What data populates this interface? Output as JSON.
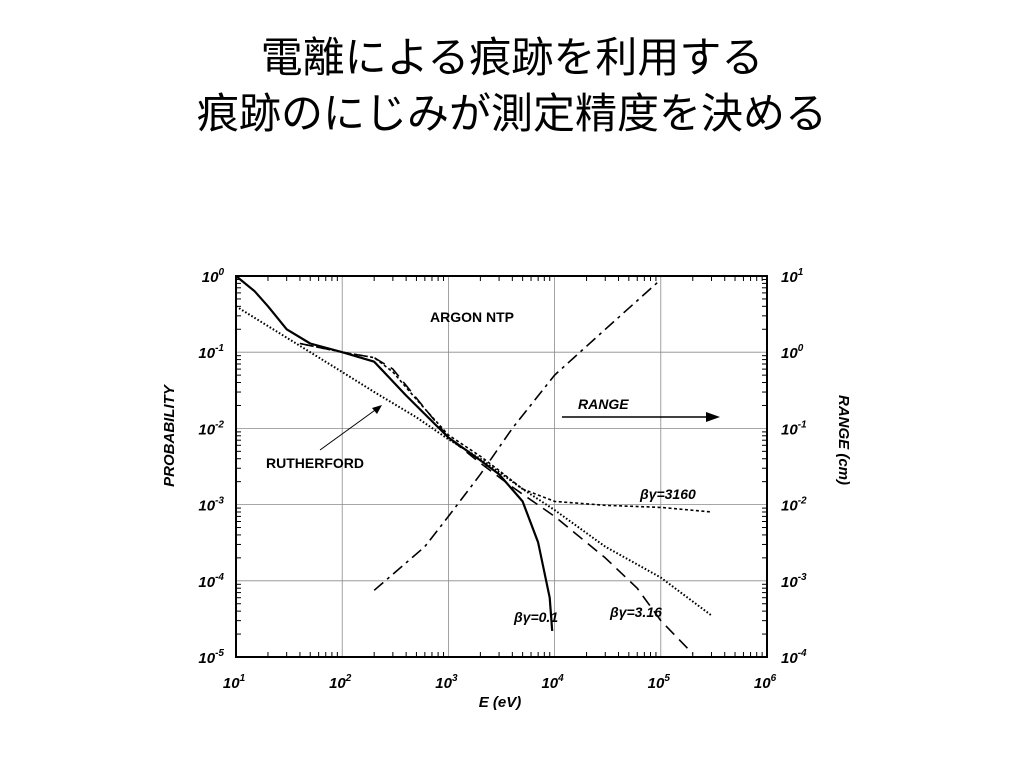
{
  "slide": {
    "title_line1": "電離による痕跡を利用する",
    "title_line2": "痕跡のにじみが測定精度を決める"
  },
  "chart_data": {
    "type": "line",
    "xlabel": "E (eV)",
    "ylabel": "PROBABILITY",
    "y2label": "RANGE (cm)",
    "xscale": "log",
    "yscale": "log",
    "xlim": [
      10,
      1000000
    ],
    "ylim": [
      1e-05,
      1
    ],
    "y2lim": [
      0.0001,
      10
    ],
    "grid": true,
    "x_ticks": [
      {
        "base": "10",
        "exp": "1",
        "value": 10
      },
      {
        "base": "10",
        "exp": "2",
        "value": 100
      },
      {
        "base": "10",
        "exp": "3",
        "value": 1000
      },
      {
        "base": "10",
        "exp": "4",
        "value": 10000
      },
      {
        "base": "10",
        "exp": "5",
        "value": 100000
      },
      {
        "base": "10",
        "exp": "6",
        "value": 1000000
      }
    ],
    "y_ticks": [
      {
        "base": "10",
        "exp": "0",
        "value": 1
      },
      {
        "base": "10",
        "exp": "-1",
        "value": 0.1
      },
      {
        "base": "10",
        "exp": "-2",
        "value": 0.01
      },
      {
        "base": "10",
        "exp": "-3",
        "value": 0.001
      },
      {
        "base": "10",
        "exp": "-4",
        "value": 0.0001
      },
      {
        "base": "10",
        "exp": "-5",
        "value": 1e-05
      }
    ],
    "y2_ticks": [
      {
        "base": "10",
        "exp": "1",
        "value": 10
      },
      {
        "base": "10",
        "exp": "0",
        "value": 1
      },
      {
        "base": "10",
        "exp": "-1",
        "value": 0.1
      },
      {
        "base": "10",
        "exp": "-2",
        "value": 0.01
      },
      {
        "base": "10",
        "exp": "-3",
        "value": 0.001
      },
      {
        "base": "10",
        "exp": "-4",
        "value": 0.0001
      }
    ],
    "annotations": {
      "gas": "ARGON NTP",
      "range": "RANGE",
      "rutherford": "RUTHERFORD"
    },
    "series": [
      {
        "name": "βγ=0.1",
        "style": "solid",
        "axis": "left",
        "points": [
          [
            10,
            1.0
          ],
          [
            15,
            0.63
          ],
          [
            20,
            0.4
          ],
          [
            30,
            0.2
          ],
          [
            50,
            0.13
          ],
          [
            100,
            0.1
          ],
          [
            200,
            0.075
          ],
          [
            400,
            0.027
          ],
          [
            1000,
            0.0076
          ],
          [
            2000,
            0.0038
          ],
          [
            3000,
            0.0025
          ],
          [
            5000,
            0.0011
          ],
          [
            7000,
            0.00032
          ],
          [
            9000,
            6e-05
          ],
          [
            9500,
            2.2e-05
          ]
        ]
      },
      {
        "name": "βγ=3160",
        "style": "dotted",
        "axis": "left",
        "points": [
          [
            40,
            0.13
          ],
          [
            100,
            0.1
          ],
          [
            200,
            0.085
          ],
          [
            300,
            0.055
          ],
          [
            500,
            0.024
          ],
          [
            1000,
            0.0082
          ],
          [
            2000,
            0.0043
          ],
          [
            3000,
            0.0028
          ],
          [
            5000,
            0.0016
          ],
          [
            10000,
            0.0011
          ],
          [
            30000,
            0.00098
          ],
          [
            100000,
            0.00092
          ],
          [
            300000,
            0.0008
          ]
        ]
      },
      {
        "name": "βγ=3.16",
        "style": "dashed",
        "axis": "left",
        "points": [
          [
            40,
            0.13
          ],
          [
            100,
            0.1
          ],
          [
            200,
            0.085
          ],
          [
            300,
            0.06
          ],
          [
            500,
            0.025
          ],
          [
            1000,
            0.0076
          ],
          [
            2000,
            0.0035
          ],
          [
            4000,
            0.0017
          ],
          [
            10000,
            0.0007
          ],
          [
            30000,
            0.0002
          ],
          [
            60000,
            8e-05
          ],
          [
            100000,
            3e-05
          ],
          [
            200000,
            1.1e-05
          ]
        ]
      },
      {
        "name": "RUTHERFORD",
        "style": "fine-dotted",
        "axis": "left",
        "points": [
          [
            10,
            0.4
          ],
          [
            20,
            0.22
          ],
          [
            50,
            0.1
          ],
          [
            100,
            0.055
          ],
          [
            200,
            0.03
          ],
          [
            500,
            0.014
          ],
          [
            1000,
            0.0072
          ],
          [
            2000,
            0.004
          ],
          [
            5000,
            0.0016
          ],
          [
            10000,
            0.00085
          ],
          [
            30000,
            0.00028
          ],
          [
            100000,
            0.00011
          ],
          [
            300000,
            3.5e-05
          ]
        ]
      },
      {
        "name": "RANGE",
        "style": "dash-dot",
        "axis": "right",
        "points": [
          [
            200,
            0.00075
          ],
          [
            600,
            0.0028
          ],
          [
            1000,
            0.007
          ],
          [
            2000,
            0.025
          ],
          [
            4000,
            0.1
          ],
          [
            10000,
            0.5
          ],
          [
            30000,
            2.0
          ],
          [
            100000,
            9.0
          ]
        ]
      }
    ],
    "series_labels": [
      {
        "text": "βγ=3160"
      },
      {
        "text": "βγ=0.1"
      },
      {
        "text": "βγ=3.16"
      }
    ]
  }
}
